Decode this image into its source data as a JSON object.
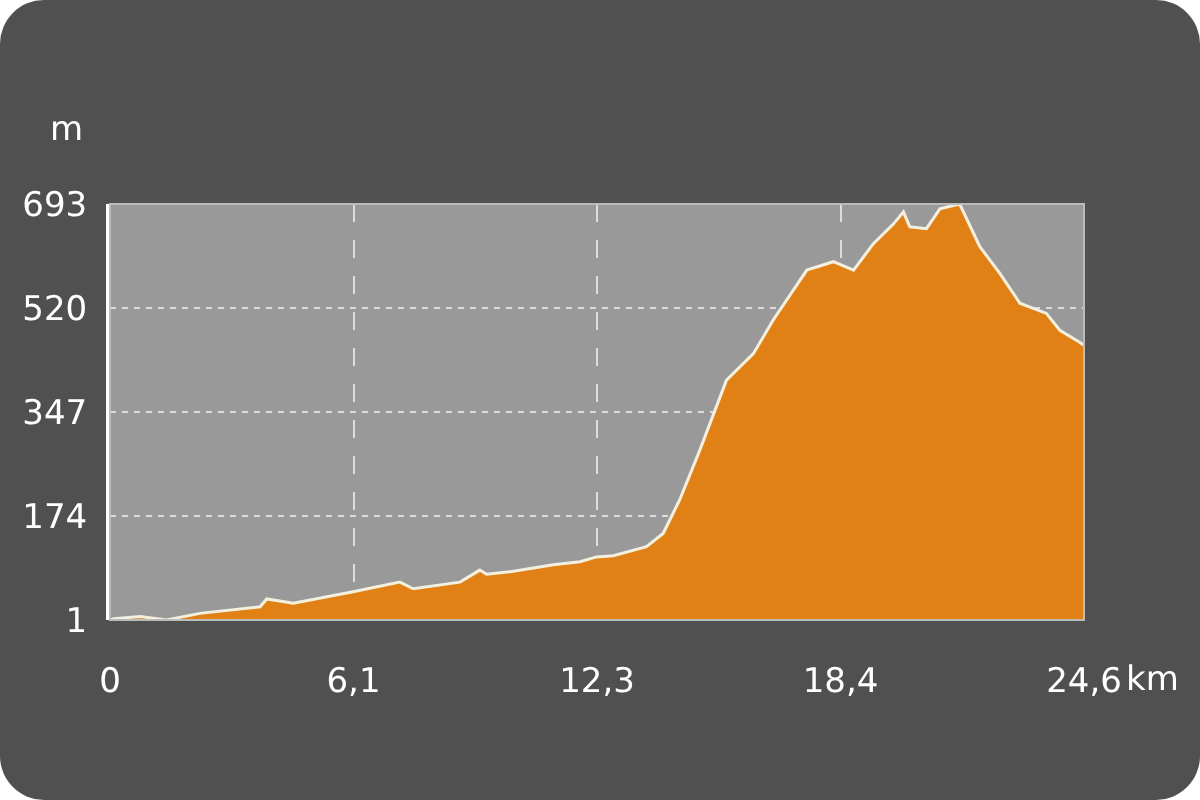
{
  "chart_data": {
    "type": "area",
    "xlabel": "km",
    "ylabel": "m",
    "color": "#e08015",
    "x": [
      0,
      0.1,
      0.76,
      1.43,
      2.27,
      3.79,
      3.96,
      4.63,
      6.14,
      7.32,
      7.66,
      8.84,
      9.34,
      9.51,
      10.19,
      11.2,
      11.87,
      12.29,
      12.71,
      13.55,
      13.97,
      14.39,
      14.9,
      15.57,
      16.25,
      16.75,
      17.6,
      18.27,
      18.78,
      19.28,
      19.79,
      20.04,
      20.2,
      20.62,
      20.96,
      21.46,
      21.97,
      22.47,
      22.98,
      23.65,
      23.99,
      24.49,
      24.6
    ],
    "values": [
      1,
      3,
      7,
      1,
      12,
      23,
      36,
      29,
      48,
      64,
      53,
      64,
      84,
      77,
      82,
      93,
      98,
      106,
      108,
      123,
      145,
      201,
      284,
      400,
      444,
      500,
      583,
      597,
      583,
      627,
      660,
      680,
      655,
      652,
      685,
      693,
      622,
      578,
      528,
      511,
      483,
      463,
      458
    ],
    "xlim": [
      0,
      24.6
    ],
    "ylim": [
      1,
      693
    ],
    "xticks": [
      0,
      {
        "value": 6.15,
        "label": "6,1"
      },
      {
        "value": 12.3,
        "label": "12,3"
      },
      {
        "value": 18.45,
        "label": "18,4"
      },
      {
        "value": 24.6,
        "label": "24,6"
      }
    ],
    "yticks": [
      1,
      174,
      347,
      520,
      693
    ],
    "grid": true
  }
}
